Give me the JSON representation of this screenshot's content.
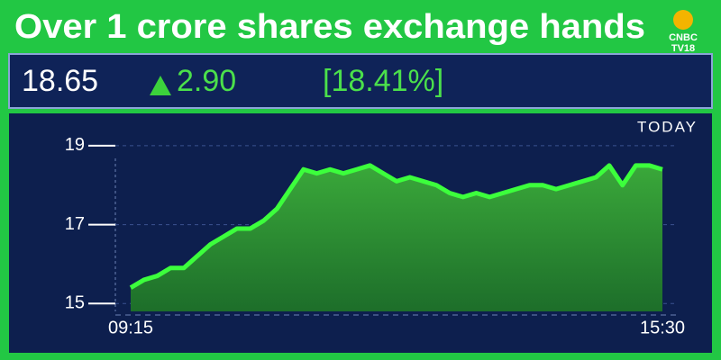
{
  "logo": {
    "name": "CNBC",
    "channel": "TV18"
  },
  "ticker": {
    "price": 18.65,
    "change": {
      "value": 2.9,
      "label": "2.90"
    },
    "change_pct": {
      "value": 18.41,
      "label": "[18.41%]"
    }
  },
  "chart_data": {
    "type": "area",
    "title": "Over 1 crore shares exchange hands",
    "annotation": "TODAY",
    "categories": [
      "09:15",
      null,
      null,
      null,
      null,
      null,
      null,
      null,
      null,
      null,
      null,
      null,
      null,
      null,
      null,
      null,
      null,
      null,
      null,
      null,
      null,
      null,
      null,
      null,
      null,
      null,
      null,
      null,
      null,
      null,
      null,
      null,
      null,
      null,
      null,
      null,
      null,
      null,
      null,
      null,
      "15:30"
    ],
    "values": [
      15.4,
      15.6,
      15.7,
      15.9,
      15.9,
      16.2,
      16.5,
      16.7,
      16.9,
      16.9,
      17.1,
      17.4,
      17.9,
      18.4,
      18.3,
      18.4,
      18.3,
      18.4,
      18.5,
      18.3,
      18.1,
      18.2,
      18.1,
      18.0,
      17.8,
      17.7,
      17.8,
      17.7,
      17.8,
      17.9,
      18.0,
      18.0,
      17.9,
      18.0,
      18.1,
      18.2,
      18.5,
      18.0,
      18.5,
      18.5,
      18.4
    ],
    "color": "#3cff3c",
    "ylim": [
      14.8,
      19.5
    ],
    "yticks": [
      15,
      17,
      19
    ],
    "grid": true
  }
}
